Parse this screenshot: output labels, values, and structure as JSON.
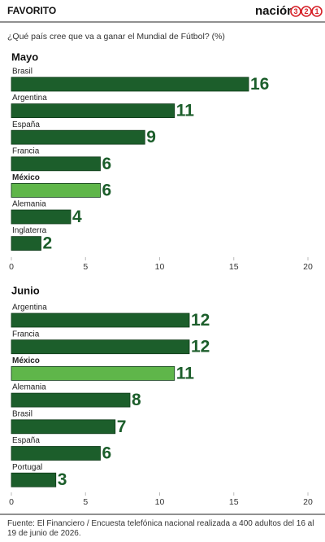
{
  "header": {
    "title": "FAVORITO",
    "logo": {
      "text": "nación",
      "digits": [
        "3",
        "2",
        "1"
      ]
    }
  },
  "subtitle": "¿Qué país cree que va a ganar el Mundial de Fútbol?  (%)",
  "chart_data": [
    {
      "type": "barh",
      "title": "Mayo",
      "categories": [
        "Brasil",
        "Argentina",
        "España",
        "Francia",
        "México",
        "Alemania",
        "Inglaterra"
      ],
      "values": [
        16,
        11,
        9,
        6,
        6,
        4,
        2
      ],
      "colors": [
        "#1c5e2b",
        "#1c5e2b",
        "#1c5e2b",
        "#1c5e2b",
        "#5fb64a",
        "#1c5e2b",
        "#1c5e2b"
      ],
      "highlight_color": "#5fb64a",
      "xlim": [
        0,
        20
      ],
      "xticks": [
        0,
        5,
        10,
        15,
        20
      ],
      "grid": false
    },
    {
      "type": "barh",
      "title": "Junio",
      "categories": [
        "Argentina",
        "Francia",
        "México",
        "Alemania",
        "Brasil",
        "España",
        "Portugal"
      ],
      "values": [
        12,
        12,
        11,
        8,
        7,
        6,
        3
      ],
      "colors": [
        "#1c5e2b",
        "#1c5e2b",
        "#5fb64a",
        "#1c5e2b",
        "#1c5e2b",
        "#1c5e2b",
        "#1c5e2b"
      ],
      "highlight_color": "#5fb64a",
      "xlim": [
        0,
        20
      ],
      "xticks": [
        0,
        5,
        10,
        15,
        20
      ],
      "grid": false
    }
  ],
  "footer": "Fuente: El Financiero / Encuesta telefónica nacional realizada a 400 adultos del 16 al 19 de junio de 2026."
}
